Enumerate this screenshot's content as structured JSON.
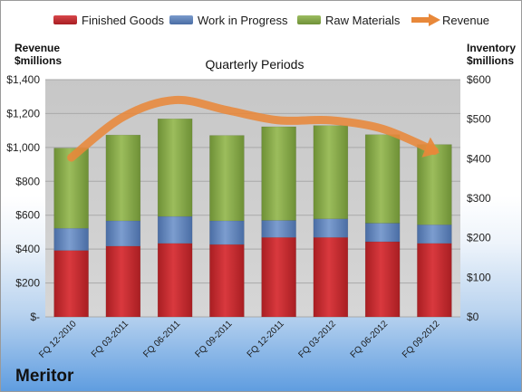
{
  "legend": {
    "finished": "Finished Goods",
    "wip": "Work in Progress",
    "raw": "Raw Materials",
    "revenue": "Revenue"
  },
  "axes": {
    "left_title_1": "Revenue",
    "left_title_2": "$millions",
    "right_title_1": "Inventory",
    "right_title_2": "$millions"
  },
  "company": "Meritor",
  "colors": {
    "finished": "#c0282d",
    "wip": "#5b7fb5",
    "raw": "#82a54a",
    "revenue": "#e8883a"
  },
  "chart_data": {
    "type": "bar",
    "stacked": true,
    "title": "Quarterly Periods",
    "categories": [
      "FQ 12-2010",
      "FQ 03-2011",
      "FQ 06-2011",
      "FQ 09-2011",
      "FQ 12-2011",
      "FQ 03-2012",
      "FQ 06-2012",
      "FQ 09-2012"
    ],
    "series": [
      {
        "name": "Finished Goods",
        "axis": "right",
        "values": [
          168,
          179,
          186,
          183,
          201,
          201,
          190,
          186
        ]
      },
      {
        "name": "Work in Progress",
        "axis": "right",
        "values": [
          56,
          64,
          68,
          60,
          43,
          47,
          47,
          47
        ]
      },
      {
        "name": "Raw Materials",
        "axis": "right",
        "values": [
          203,
          217,
          247,
          216,
          237,
          236,
          224,
          203
        ]
      }
    ],
    "line_series": {
      "name": "Revenue",
      "axis": "left",
      "values": [
        940,
        1180,
        1280,
        1220,
        1160,
        1160,
        1110,
        980
      ]
    },
    "left_axis": {
      "ylim": [
        0,
        1400
      ],
      "ticks": [
        "$-",
        "$200",
        "$400",
        "$600",
        "$800",
        "$1,000",
        "$1,200",
        "$1,400"
      ]
    },
    "right_axis": {
      "ylim": [
        0,
        600
      ],
      "ticks": [
        "$0",
        "$100",
        "$200",
        "$300",
        "$400",
        "$500",
        "$600"
      ]
    },
    "grid": true,
    "legend_position": "top"
  }
}
